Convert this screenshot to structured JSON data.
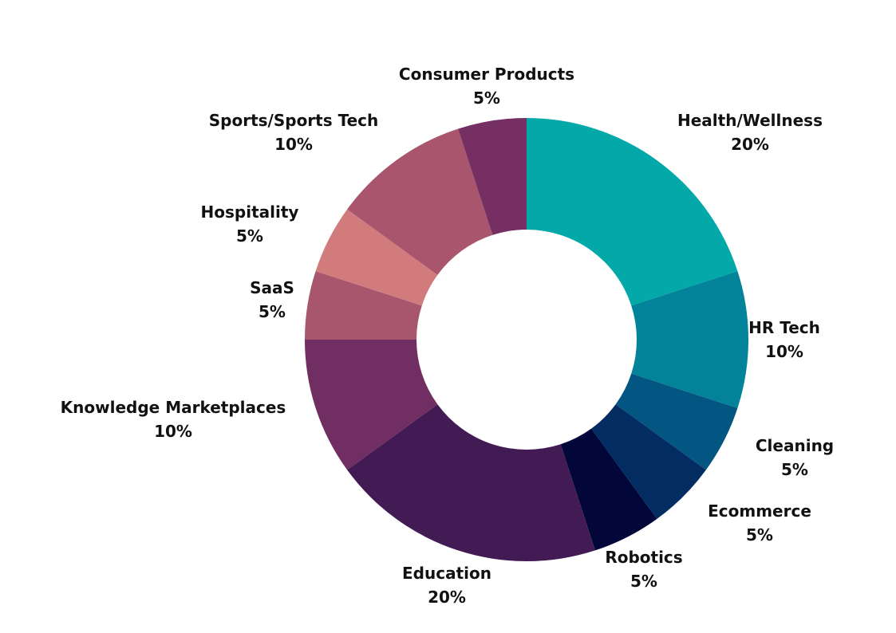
{
  "chart_data": {
    "type": "pie",
    "donut": true,
    "title": "",
    "slices": [
      {
        "label": "Health/Wellness",
        "value": 20,
        "value_label": "20%",
        "color": "#02A9A8"
      },
      {
        "label": "HR Tech",
        "value": 10,
        "value_label": "10%",
        "color": "#02839A"
      },
      {
        "label": "Cleaning",
        "value": 5,
        "value_label": "5%",
        "color": "#045682"
      },
      {
        "label": "Ecommerce",
        "value": 5,
        "value_label": "5%",
        "color": "#032D62"
      },
      {
        "label": "Robotics",
        "value": 5,
        "value_label": "5%",
        "color": "#020639"
      },
      {
        "label": "Education",
        "value": 20,
        "value_label": "20%",
        "color": "#421B55"
      },
      {
        "label": "Knowledge Marketplaces",
        "value": 10,
        "value_label": "10%",
        "color": "#712E63"
      },
      {
        "label": "SaaS",
        "value": 5,
        "value_label": "5%",
        "color": "#A7566E"
      },
      {
        "label": "Hospitality",
        "value": 5,
        "value_label": "5%",
        "color": "#D27B7D"
      },
      {
        "label": "Sports/Sports Tech",
        "value": 10,
        "value_label": "10%",
        "color": "#A9556E"
      },
      {
        "label": "Consumer Products",
        "value": 5,
        "value_label": "5%",
        "color": "#762F63"
      }
    ]
  }
}
